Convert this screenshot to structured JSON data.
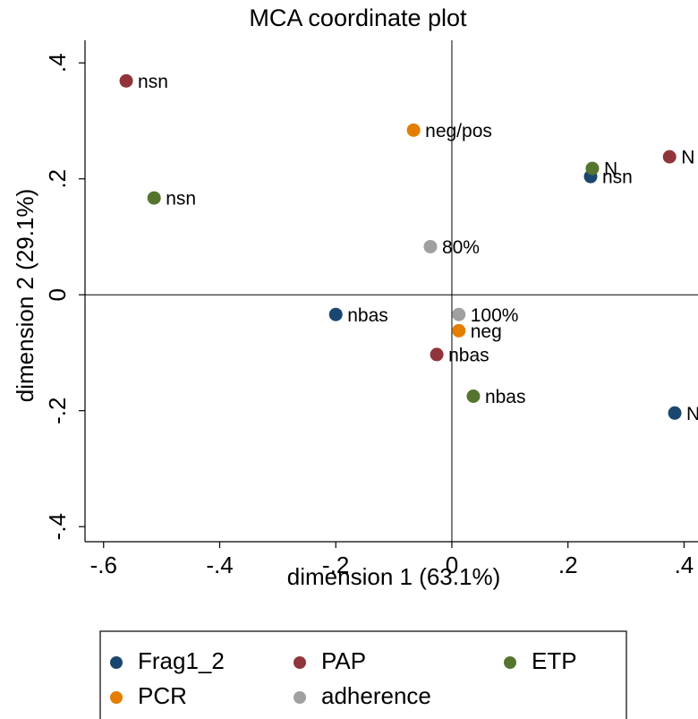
{
  "chart_data": {
    "type": "scatter",
    "title": "MCA coordinate plot",
    "x_label": "dimension 1 (63.1%)",
    "y_label": "dimension 2 (29.1%)",
    "xlim": [
      -0.632,
      0.424
    ],
    "ylim": [
      -0.426,
      0.439
    ],
    "xticks": [
      {
        "value": -0.6,
        "label": "-.6"
      },
      {
        "value": -0.4,
        "label": "-.4"
      },
      {
        "value": -0.2,
        "label": "-.2"
      },
      0,
      {
        "value": 0.2,
        "label": ".2"
      },
      {
        "value": 0.4,
        "label": ".4"
      }
    ],
    "yticks": [
      {
        "value": -0.4,
        "label": "-.4"
      },
      {
        "value": -0.2,
        "label": "-.2"
      },
      0,
      {
        "value": 0.2,
        "label": ".2"
      },
      {
        "value": 0.4,
        "label": ".4"
      }
    ],
    "reference_lines": {
      "x": 0,
      "y": 0
    },
    "series": [
      {
        "name": "Frag1_2",
        "color": "#1a476f",
        "x": [
          0.239,
          -0.2,
          0.384
        ],
        "values": [
          0.204,
          -0.034,
          -0.204
        ],
        "labels": [
          "nsn",
          "nbas",
          "N"
        ]
      },
      {
        "name": "PAP",
        "color": "#90353b",
        "x": [
          -0.561,
          0.375,
          -0.026
        ],
        "values": [
          0.369,
          0.238,
          -0.103
        ],
        "labels": [
          "nsn",
          "N",
          "nbas"
        ]
      },
      {
        "name": "ETP",
        "color": "#55752f",
        "x": [
          0.242,
          -0.513,
          0.037
        ],
        "values": [
          0.218,
          0.167,
          -0.175
        ],
        "labels": [
          "N",
          "nsn",
          "nbas"
        ]
      },
      {
        "name": "PCR",
        "color": "#e37e00",
        "x": [
          -0.066,
          0.012
        ],
        "values": [
          0.284,
          -0.062
        ],
        "labels": [
          "neg/pos",
          "neg"
        ]
      },
      {
        "name": "adherence",
        "color": "#a0a0a0",
        "x": [
          -0.037,
          0.012
        ],
        "values": [
          0.083,
          -0.034
        ],
        "labels": [
          "80%",
          "100%"
        ]
      }
    ]
  }
}
